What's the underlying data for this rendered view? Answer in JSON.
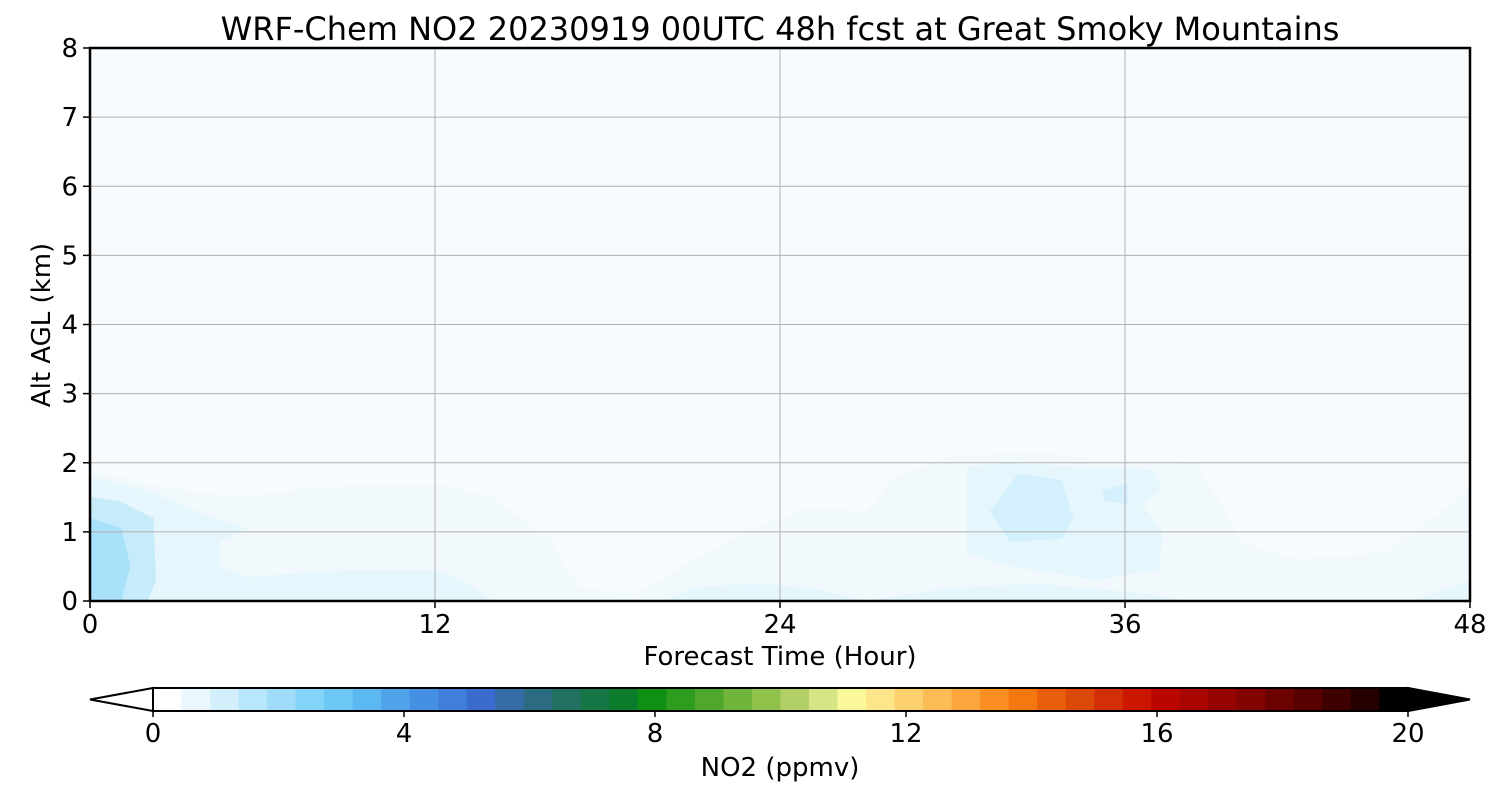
{
  "chart_data": {
    "type": "heatmap",
    "title": "WRF-Chem NO2  20230919 00UTC 48h fcst at Great Smoky Mountains",
    "xlabel": "Forecast Time (Hour)",
    "ylabel": "Alt AGL (km)",
    "xlim": [
      0,
      48
    ],
    "ylim": [
      0,
      8
    ],
    "xticks": [
      0,
      12,
      24,
      36,
      48
    ],
    "yticks": [
      0,
      1,
      2,
      3,
      4,
      5,
      6,
      7,
      8
    ],
    "grid": true,
    "colorbar": {
      "label": "NO2  (ppmv)",
      "min": 0,
      "max": 20,
      "ticks": [
        0,
        4,
        8,
        12,
        16,
        20
      ],
      "extend": "both",
      "colors": [
        "#ffffff",
        "#eaf7fd",
        "#d2effb",
        "#b8e6fa",
        "#9edcf9",
        "#84d3f8",
        "#6cc9f6",
        "#5cb8f0",
        "#4fa3ea",
        "#4590e3",
        "#3f7fda",
        "#3a6ccf",
        "#336ca6",
        "#2c6c82",
        "#237060",
        "#177645",
        "#0a7c2c",
        "#0f8f14",
        "#2e9c1e",
        "#4fa82b",
        "#70b53a",
        "#91c24c",
        "#b2d065",
        "#d6e585",
        "#fbf89a",
        "#fde58a",
        "#fcd06f",
        "#fbbb55",
        "#fba53c",
        "#fa8e22",
        "#f4770f",
        "#e75f0a",
        "#db4807",
        "#d22f06",
        "#cc1600",
        "#bb0600",
        "#a80500",
        "#950400",
        "#820300",
        "#6c0200",
        "#560100",
        "#3f0000",
        "#250000",
        "#000000"
      ]
    },
    "values_note_units": "ppmv",
    "contours": [
      {
        "level": 0.1,
        "color": "#f2f9fd",
        "points": [
          [
            0,
            0
          ],
          [
            0,
            1.9
          ],
          [
            2,
            1.7
          ],
          [
            5,
            1.5
          ],
          [
            8,
            1.65
          ],
          [
            12,
            1.7
          ],
          [
            14,
            1.5
          ],
          [
            16,
            0.9
          ],
          [
            17,
            0.2
          ],
          [
            19,
            0.1
          ],
          [
            21,
            0.6
          ],
          [
            23,
            1.05
          ],
          [
            25,
            1.35
          ],
          [
            27,
            1.3
          ],
          [
            28,
            1.8
          ],
          [
            30,
            2.1
          ],
          [
            33,
            2.15
          ],
          [
            35,
            2.05
          ],
          [
            37,
            2.05
          ],
          [
            38.5,
            2
          ],
          [
            39.2,
            1.5
          ],
          [
            40,
            0.85
          ],
          [
            42,
            0.6
          ],
          [
            45,
            0.7
          ],
          [
            48,
            1.6
          ],
          [
            48,
            0
          ]
        ]
      },
      {
        "level": 0.5,
        "color": "#e6f6fd",
        "points": [
          [
            0,
            0
          ],
          [
            0,
            1.8
          ],
          [
            2,
            1.6
          ],
          [
            4,
            1.25
          ],
          [
            5.5,
            1.05
          ],
          [
            4.5,
            0.85
          ],
          [
            4.5,
            0.5
          ],
          [
            5.5,
            0.35
          ],
          [
            9,
            0.45
          ],
          [
            12,
            0.45
          ],
          [
            13,
            0.3
          ],
          [
            14,
            0
          ],
          [
            0,
            0
          ]
        ]
      },
      {
        "level": 0.5,
        "color": "#e6f6fd",
        "points": [
          [
            30.5,
            1.95
          ],
          [
            32,
            2.0
          ],
          [
            34,
            1.95
          ],
          [
            37,
            1.9
          ],
          [
            37.3,
            1.6
          ],
          [
            36.6,
            1.4
          ],
          [
            37.3,
            1.0
          ],
          [
            37.2,
            0.45
          ],
          [
            35,
            0.3
          ],
          [
            32,
            0.5
          ],
          [
            30.5,
            0.7
          ]
        ]
      },
      {
        "level": 0.5,
        "color": "#e6f6fd",
        "points": [
          [
            20,
            0
          ],
          [
            21,
            0.2
          ],
          [
            23,
            0.25
          ],
          [
            25,
            0.2
          ],
          [
            27,
            0
          ],
          [
            20,
            0
          ]
        ]
      },
      {
        "level": 0.5,
        "color": "#e6f6fd",
        "points": [
          [
            27,
            0.0
          ],
          [
            30,
            0.2
          ],
          [
            33,
            0.25
          ],
          [
            37,
            0.1
          ],
          [
            38,
            0
          ],
          [
            27,
            0
          ]
        ]
      },
      {
        "level": 0.5,
        "color": "#e6f6fd",
        "points": [
          [
            46,
            0
          ],
          [
            48,
            0.3
          ],
          [
            48,
            0
          ],
          [
            46,
            0
          ]
        ]
      },
      {
        "level": 1.0,
        "color": "#c6ecfb",
        "points": [
          [
            0,
            0
          ],
          [
            0,
            1.5
          ],
          [
            1,
            1.45
          ],
          [
            2.2,
            1.2
          ],
          [
            2.3,
            0.3
          ],
          [
            2,
            0
          ],
          [
            0,
            0
          ]
        ]
      },
      {
        "level": 1.0,
        "color": "#d4f0fc",
        "points": [
          [
            32.3,
            1.85
          ],
          [
            33.8,
            1.75
          ],
          [
            34.2,
            1.2
          ],
          [
            33.8,
            0.9
          ],
          [
            32,
            0.85
          ],
          [
            31.3,
            1.3
          ]
        ]
      },
      {
        "level": 1.0,
        "color": "#d4f0fc",
        "points": [
          [
            35.2,
            1.6
          ],
          [
            36.1,
            1.7
          ],
          [
            36.1,
            1.4
          ],
          [
            35.3,
            1.45
          ]
        ]
      },
      {
        "level": 1.5,
        "color": "#a9e0fa",
        "points": [
          [
            0,
            0
          ],
          [
            0,
            1.2
          ],
          [
            1.1,
            1.05
          ],
          [
            1.4,
            0.5
          ],
          [
            1.1,
            0
          ],
          [
            0,
            0
          ]
        ]
      }
    ]
  }
}
